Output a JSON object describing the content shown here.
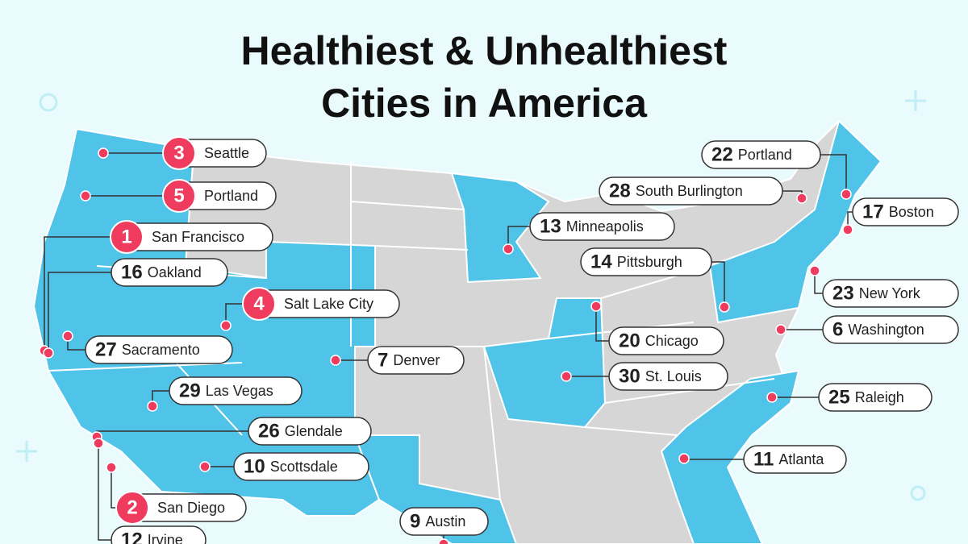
{
  "header": {
    "title": [
      "Healthiest & Unhealthiest",
      "Cities in America"
    ]
  },
  "labels": [
    {
      "rank": 3,
      "city": "Seattle"
    },
    {
      "rank": 5,
      "city": "Portland"
    },
    {
      "rank": 1,
      "city": "San Francisco"
    },
    {
      "rank": 16,
      "city": "Oakland"
    },
    {
      "rank": 4,
      "city": "Salt Lake City"
    },
    {
      "rank": 27,
      "city": "Sacramento"
    },
    {
      "rank": 7,
      "city": "Denver"
    },
    {
      "rank": 29,
      "city": "Las Vegas"
    },
    {
      "rank": 26,
      "city": "Glendale"
    },
    {
      "rank": 10,
      "city": "Scottsdale"
    },
    {
      "rank": 2,
      "city": "San Diego"
    },
    {
      "rank": 12,
      "city": "Irvine"
    },
    {
      "rank": 9,
      "city": "Austin"
    },
    {
      "rank": 13,
      "city": "Minneapolis"
    },
    {
      "rank": 14,
      "city": "Pittsburgh"
    },
    {
      "rank": 20,
      "city": "Chicago"
    },
    {
      "rank": 30,
      "city": "St. Louis"
    },
    {
      "rank": 22,
      "city": "Portland"
    },
    {
      "rank": 28,
      "city": "South Burlington"
    },
    {
      "rank": 17,
      "city": "Boston"
    },
    {
      "rank": 23,
      "city": "New York"
    },
    {
      "rank": 6,
      "city": "Washington"
    },
    {
      "rank": 25,
      "city": "Raleigh"
    },
    {
      "rank": 11,
      "city": "Atlanta"
    }
  ]
}
